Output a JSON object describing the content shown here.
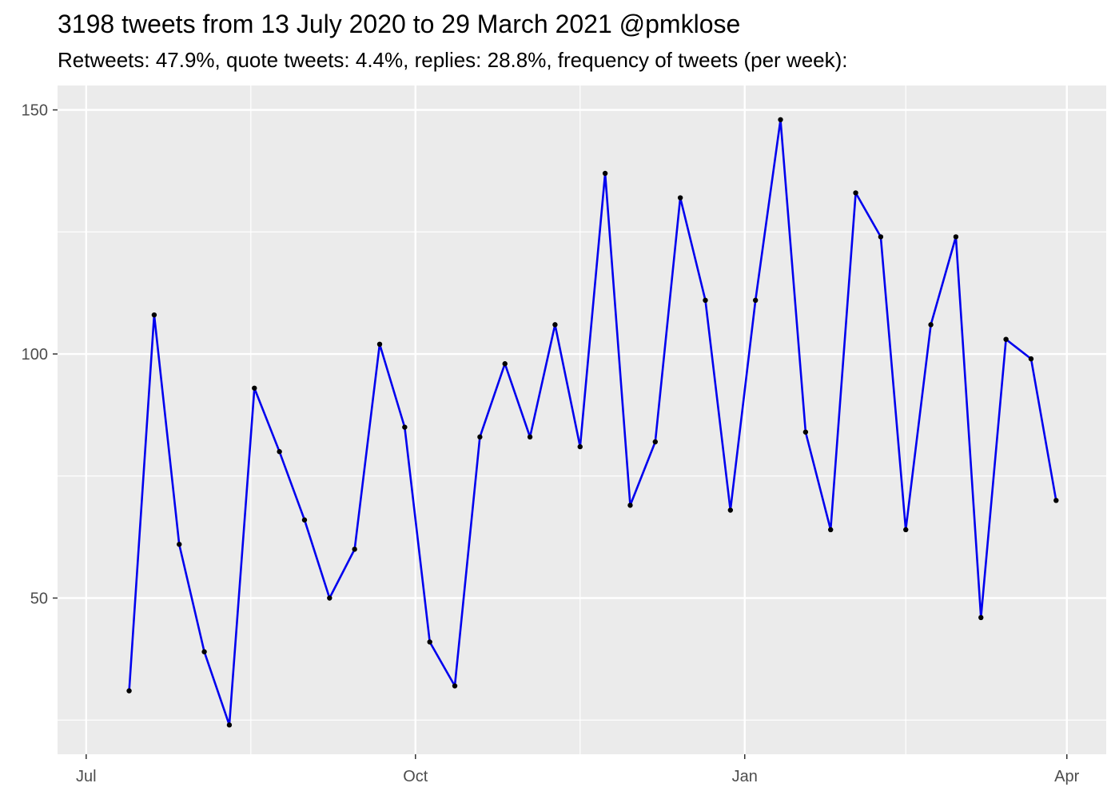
{
  "chart_data": {
    "type": "line",
    "title": "3198 tweets from 13 July 2020 to 29 March 2021 @pmklose",
    "subtitle": "Retweets: 47.9%, quote tweets: 4.4%, replies: 28.8%, frequency of tweets (per week):",
    "xlabel": "",
    "ylabel": "",
    "x_ticks": [
      {
        "label": "Jul",
        "date": "2020-07-01"
      },
      {
        "label": "Oct",
        "date": "2020-10-01"
      },
      {
        "label": "Jan",
        "date": "2021-01-01"
      },
      {
        "label": "Apr",
        "date": "2021-04-01"
      }
    ],
    "y_ticks": [
      50,
      100,
      150
    ],
    "xlim": [
      "2020-06-23",
      "2021-04-12"
    ],
    "ylim": [
      18,
      155
    ],
    "grid": true,
    "colors": {
      "line": "#0000ee",
      "point": "#000000",
      "panel": "#ebebeb",
      "grid": "#ffffff",
      "axis_text": "#4d4d4d"
    },
    "series": [
      {
        "points": [
          {
            "x": "2020-07-13",
            "y": 31
          },
          {
            "x": "2020-07-20",
            "y": 108
          },
          {
            "x": "2020-07-27",
            "y": 61
          },
          {
            "x": "2020-08-03",
            "y": 39
          },
          {
            "x": "2020-08-10",
            "y": 24
          },
          {
            "x": "2020-08-17",
            "y": 93
          },
          {
            "x": "2020-08-24",
            "y": 80
          },
          {
            "x": "2020-08-31",
            "y": 66
          },
          {
            "x": "2020-09-07",
            "y": 50
          },
          {
            "x": "2020-09-14",
            "y": 60
          },
          {
            "x": "2020-09-21",
            "y": 102
          },
          {
            "x": "2020-09-28",
            "y": 85
          },
          {
            "x": "2020-10-05",
            "y": 41
          },
          {
            "x": "2020-10-12",
            "y": 32
          },
          {
            "x": "2020-10-19",
            "y": 83
          },
          {
            "x": "2020-10-26",
            "y": 98
          },
          {
            "x": "2020-11-02",
            "y": 83
          },
          {
            "x": "2020-11-09",
            "y": 106
          },
          {
            "x": "2020-11-16",
            "y": 81
          },
          {
            "x": "2020-11-23",
            "y": 137
          },
          {
            "x": "2020-11-30",
            "y": 69
          },
          {
            "x": "2020-12-07",
            "y": 82
          },
          {
            "x": "2020-12-14",
            "y": 132
          },
          {
            "x": "2020-12-21",
            "y": 111
          },
          {
            "x": "2020-12-28",
            "y": 68
          },
          {
            "x": "2021-01-04",
            "y": 111
          },
          {
            "x": "2021-01-11",
            "y": 148
          },
          {
            "x": "2021-01-18",
            "y": 84
          },
          {
            "x": "2021-01-25",
            "y": 64
          },
          {
            "x": "2021-02-01",
            "y": 133
          },
          {
            "x": "2021-02-08",
            "y": 124
          },
          {
            "x": "2021-02-15",
            "y": 64
          },
          {
            "x": "2021-02-22",
            "y": 106
          },
          {
            "x": "2021-03-01",
            "y": 124
          },
          {
            "x": "2021-03-08",
            "y": 46
          },
          {
            "x": "2021-03-15",
            "y": 103
          },
          {
            "x": "2021-03-22",
            "y": 99
          },
          {
            "x": "2021-03-29",
            "y": 70
          }
        ]
      }
    ]
  }
}
